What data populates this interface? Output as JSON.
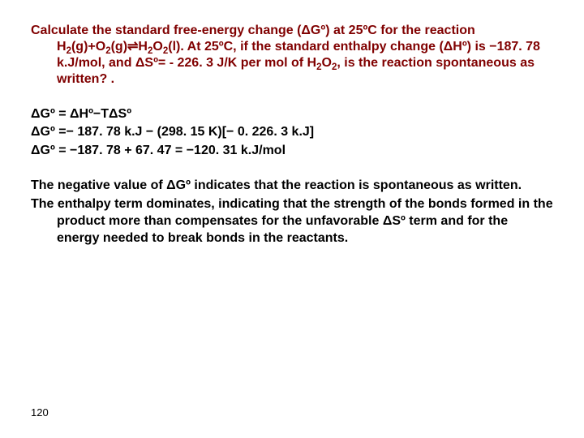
{
  "colors": {
    "problem_text": "#800000",
    "body_text": "#000000",
    "background": "#ffffff"
  },
  "typography": {
    "font_family": "Arial",
    "font_size_pt": 12,
    "font_weight": "bold",
    "line_height": 1.3
  },
  "problem": {
    "prefix": "Calculate the standard free-energy change (ΔGº) at 25ºC for the reaction H",
    "sub1": "2",
    "mid1": "(g)+O",
    "sub2": "2",
    "mid2": "(g)⇌H",
    "sub3": "2",
    "mid3": "O",
    "sub4": "2",
    "mid4": "(l). At 25ºC, if the standard enthalpy change (ΔHº) is −187. 78 k.J/mol, and ΔSº= - 226. 3 J/K per mol of H",
    "sub5": "2",
    "mid5": "O",
    "sub6": "2",
    "suffix": ", is the reaction spontaneous as written? ."
  },
  "work": {
    "line1": "ΔGº = ΔHº−TΔSº",
    "line2": "ΔGº =− 187. 78 k.J − (298. 15 K)[− 0. 226. 3 k.J]",
    "line3": "ΔGº = −187. 78 + 67. 47 = −120. 31 k.J/mol"
  },
  "conclusion": {
    "para1": "The negative value of ΔGº indicates that the reaction is spontaneous as written.",
    "para2": "The enthalpy term dominates, indicating that the strength of the bonds formed in the product more than compensates for the unfavorable ΔSº term and for the energy needed to break bonds in the reactants."
  },
  "page_number": "120"
}
